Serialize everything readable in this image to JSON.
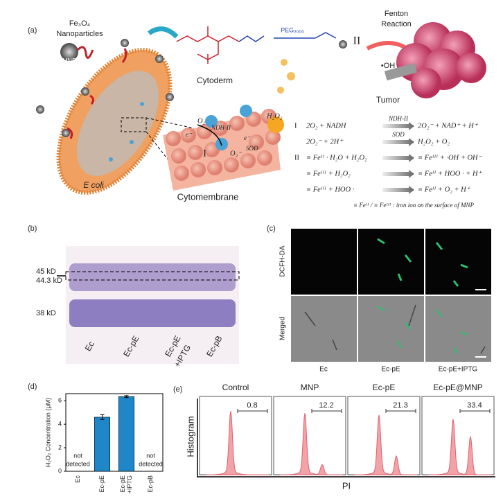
{
  "figure": {
    "a": {
      "label": "(a)",
      "fe3o4": "Fe₃O₄",
      "nanoparticles": "Nanoparticles",
      "mnp": "MNP",
      "peg": "PEG₂₀₀₀",
      "cytoderm": "Cytoderm",
      "roman2": "II",
      "fenton": "Fenton",
      "reaction": "Reaction",
      "oh": "•OH",
      "tumor": "Tumor",
      "ecoli": "E coli",
      "cytomembrane": "Cytomembrane",
      "o2": "O₂",
      "ndh": "NDH-II",
      "e1": "e⁻",
      "roman1": "I",
      "o2minus": "O₂⁻",
      "e2": "e⁻",
      "sod": "SOD",
      "h2o2": "H₂O₂",
      "equations": [
        {
          "tag": "I",
          "left": "2O₂ + NADH",
          "over": "NDH-II",
          "right": "2O₂⁻ + NAD⁺ + H⁺"
        },
        {
          "left": "2O₂⁻ + 2H⁺",
          "over": "SOD",
          "right": "H₂O₂ + O₂"
        },
        {
          "tag": "II",
          "left": "≡ Feᴵᴵ · H₂O + H₂O₂",
          "right": "≡ Feᴵᴵᴵ + ·OH + OH⁻"
        },
        {
          "left": "≡ Feᴵᴵᴵ + H₂O₂",
          "right": "≡ Feᴵᴵ + HOO · + H⁺"
        },
        {
          "left": "≡ Feᴵᴵᴵ + HOO ·",
          "right": "≡ Feᴵᴵ + O₂ + H⁺"
        }
      ],
      "note": "≡ Feᴵᴵ / ≡ Feᴵᴵᴵ : iron ion on the surface of  MNP"
    },
    "b": {
      "label": "(b)",
      "bands": [
        "45 kD",
        "44.3 kD",
        "38 kD"
      ],
      "lanes": [
        [
          "Ec"
        ],
        [
          "Ec-pE"
        ],
        [
          "Ec-pE",
          "+IPTG"
        ],
        [
          "Ec-pB"
        ]
      ]
    },
    "c": {
      "label": "(c)",
      "rows": [
        "DCFH-DA",
        "Merged"
      ],
      "columns": [
        "Ec",
        "Ec-pE",
        "Ec-pE+IPTG"
      ]
    },
    "e": {
      "label": "(e)",
      "ylabel": "Histogram",
      "xlabel": "PI",
      "panels": [
        {
          "title": "Control",
          "gate": 0.8
        },
        {
          "title": "MNP",
          "gate": 12.2
        },
        {
          "title": "Ec-pE",
          "gate": 21.3
        },
        {
          "title": "Ec-pE@MNP",
          "gate": 33.4
        }
      ]
    }
  },
  "chart_data": {
    "type": "bar",
    "label": "(d)",
    "ylabel": "H₂O₂ Concentration (μM)",
    "categories": [
      [
        "Ec"
      ],
      [
        "Ec-pE"
      ],
      [
        "Ec-pE",
        "+IPTG"
      ],
      [
        "Ec-pB"
      ]
    ],
    "values": [
      null,
      4.6,
      6.35,
      null
    ],
    "errors": [
      null,
      0.2,
      0.08,
      null
    ],
    "color": "#1f86c8",
    "annotations": [
      {
        "category": 0,
        "lines": [
          "not",
          "detected"
        ]
      },
      {
        "category": 3,
        "lines": [
          "not",
          "detected"
        ]
      }
    ],
    "ylim": [
      0,
      6.6
    ],
    "yticks": [
      0,
      2,
      4,
      6
    ]
  }
}
